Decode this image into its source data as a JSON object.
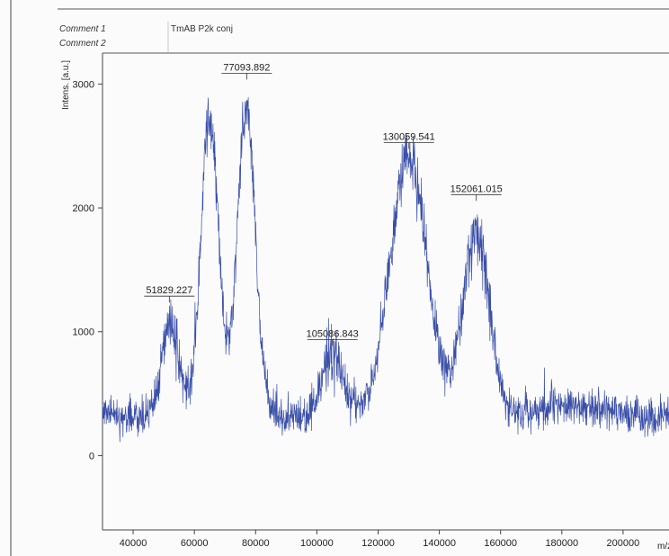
{
  "comments": {
    "comment1_label": "Comment 1",
    "comment1_value": "TmAB P2k conj",
    "comment2_label": "Comment 2"
  },
  "colors": {
    "trace": "#3a4fa8",
    "frame": "#555555",
    "text": "#222222"
  },
  "chart_data": {
    "type": "line",
    "ylabel": "Intens. [a.u.]",
    "xlabel": "m/z",
    "xlim": [
      30000,
      215000
    ],
    "ylim": [
      -600,
      3250
    ],
    "x_ticks": [
      40000,
      60000,
      80000,
      100000,
      120000,
      140000,
      160000,
      180000,
      200000
    ],
    "x_tick_labels": [
      "40000",
      "60000",
      "80000",
      "100000",
      "120000",
      "140000",
      "160000",
      "180000",
      "200000"
    ],
    "y_ticks": [
      0,
      1000,
      2000,
      3000
    ],
    "y_tick_labels": [
      "0",
      "1000",
      "2000",
      "3000"
    ],
    "grid": false,
    "baseline": 350,
    "noise": 110,
    "peaks": [
      {
        "x": 52000,
        "height": 750,
        "width": 2600
      },
      {
        "x": 65000,
        "height": 2350,
        "width": 2900
      },
      {
        "x": 77000,
        "height": 2450,
        "width": 2900
      },
      {
        "x": 105100,
        "height": 480,
        "width": 3500
      },
      {
        "x": 130000,
        "height": 2050,
        "width": 5800
      },
      {
        "x": 152000,
        "height": 1500,
        "width": 4300
      }
    ],
    "peak_labels": [
      {
        "x": 51829.227,
        "y": 1280,
        "label": "51829.227"
      },
      {
        "x": 77093.892,
        "y": 3080,
        "label": "77093.892"
      },
      {
        "x": 105086.843,
        "y": 930,
        "label": "105086.843"
      },
      {
        "x": 130059.541,
        "y": 2520,
        "label": "130059.541"
      },
      {
        "x": 152061.015,
        "y": 2100,
        "label": "152061.015"
      }
    ]
  }
}
